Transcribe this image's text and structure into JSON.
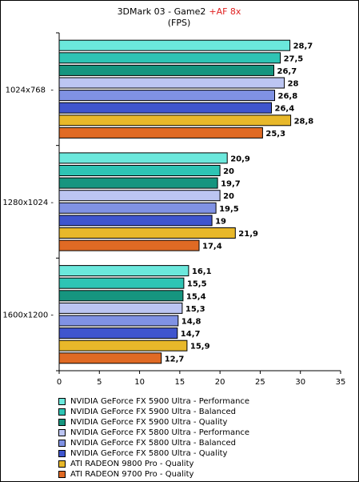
{
  "chart_data": {
    "type": "bar",
    "orientation": "horizontal",
    "title": "3DMark 03 - Game2",
    "title_highlight": "+AF 8x",
    "subtitle": "(FPS)",
    "categories": [
      "1024x768",
      "1280x1024",
      "1600x1200"
    ],
    "category_label_suffixes": [
      "  -",
      " -",
      " -"
    ],
    "xlim": [
      0,
      35
    ],
    "x_ticks": [
      0,
      5,
      10,
      15,
      20,
      25,
      30,
      35
    ],
    "grid": false,
    "legend_position": "bottom",
    "series": [
      {
        "name": "NVIDIA GeForce FX 5900 Ultra - Performance",
        "color": "#6BE8DC",
        "values": [
          28.7,
          20.9,
          16.1
        ]
      },
      {
        "name": "NVIDIA GeForce FX 5900 Ultra - Balanced",
        "color": "#2EC4B4",
        "values": [
          27.5,
          20,
          15.5
        ]
      },
      {
        "name": "NVIDIA GeForce FX 5900 Ultra - Quality",
        "color": "#16957F",
        "values": [
          26.7,
          19.7,
          15.4
        ]
      },
      {
        "name": "NVIDIA GeForce FX 5800 Ultra - Performance",
        "color": "#BCC5F2",
        "values": [
          28,
          20,
          15.3
        ]
      },
      {
        "name": "NVIDIA GeForce FX 5800 Ultra - Balanced",
        "color": "#8092E4",
        "values": [
          26.8,
          19.5,
          14.8
        ]
      },
      {
        "name": "NVIDIA GeForce FX 5800 Ultra - Quality",
        "color": "#3F55CE",
        "values": [
          26.4,
          19,
          14.7
        ]
      },
      {
        "name": "ATI RADEON 9800 Pro - Quality",
        "color": "#E8B82A",
        "values": [
          28.8,
          21.9,
          15.9
        ]
      },
      {
        "name": "ATI RADEON 9700 Pro - Quality",
        "color": "#E06A24",
        "values": [
          25.3,
          17.4,
          12.7
        ]
      }
    ],
    "value_labels": [
      [
        "28,7",
        "20,9",
        "16,1"
      ],
      [
        "27,5",
        "20",
        "15,5"
      ],
      [
        "26,7",
        "19,7",
        "15,4"
      ],
      [
        "28",
        "20",
        "15,3"
      ],
      [
        "26,8",
        "19,5",
        "14,8"
      ],
      [
        "26,4",
        "19",
        "14,7"
      ],
      [
        "28,8",
        "21,9",
        "15,9"
      ],
      [
        "25,3",
        "17,4",
        "12,7"
      ]
    ],
    "title_highlight_color": "#E02020"
  }
}
